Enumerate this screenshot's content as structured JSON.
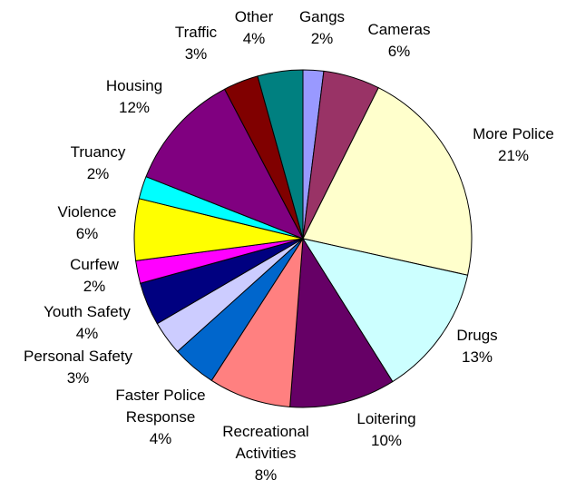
{
  "chart_data": {
    "type": "pie",
    "title": "",
    "start_angle_deg": 0,
    "direction": "clockwise",
    "slices": [
      {
        "label_lines": [
          "Gangs",
          "2%"
        ],
        "value": 2.0,
        "color": "#9999ff"
      },
      {
        "label_lines": [
          "Cameras",
          "6%"
        ],
        "value": 5.5,
        "color": "#993366"
      },
      {
        "label_lines": [
          "More Police",
          "21%"
        ],
        "value": 21.4,
        "color": "#ffffcc"
      },
      {
        "label_lines": [
          "Drugs",
          "13%"
        ],
        "value": 12.8,
        "color": "#ccffff"
      },
      {
        "label_lines": [
          "Loitering",
          "10%"
        ],
        "value": 10.3,
        "color": "#660066"
      },
      {
        "label_lines": [
          "Recreational",
          "Activities",
          "8%"
        ],
        "value": 8.0,
        "color": "#ff8080"
      },
      {
        "label_lines": [
          "Faster Police",
          "Response",
          "4%"
        ],
        "value": 4.3,
        "color": "#0066cc"
      },
      {
        "label_lines": [
          "Personal Safety",
          "3%"
        ],
        "value": 3.3,
        "color": "#ccccff"
      },
      {
        "label_lines": [
          "Youth Safety",
          "4%"
        ],
        "value": 4.2,
        "color": "#000080"
      },
      {
        "label_lines": [
          "Curfew",
          "2%"
        ],
        "value": 2.2,
        "color": "#ff00ff"
      },
      {
        "label_lines": [
          "Violence",
          "6%"
        ],
        "value": 6.0,
        "color": "#ffff00"
      },
      {
        "label_lines": [
          "Truancy",
          "2%"
        ],
        "value": 2.2,
        "color": "#00ffff"
      },
      {
        "label_lines": [
          "Housing",
          "12%"
        ],
        "value": 11.5,
        "color": "#800080"
      },
      {
        "label_lines": [
          "Traffic",
          "3%"
        ],
        "value": 3.4,
        "color": "#800000"
      },
      {
        "label_lines": [
          "Other",
          "4%"
        ],
        "value": 4.4,
        "color": "#008080"
      }
    ]
  }
}
